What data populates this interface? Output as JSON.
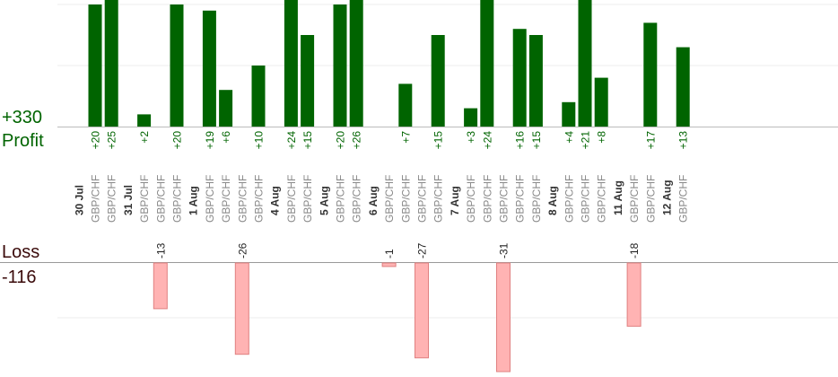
{
  "summary": {
    "profit_total": "+330",
    "profit_label": "Profit",
    "loss_label": "Loss",
    "loss_total": "-116"
  },
  "colors": {
    "profit_bar": "#006400",
    "loss_bar": "#ffb3b3",
    "loss_bar_border": "#e08080",
    "grid": "#eeeeee",
    "axis": "#999999"
  },
  "chart_data": {
    "type": "bar",
    "profit_scale_max": 20,
    "loss_scale_max": 23,
    "dates": [
      "30 Jul",
      "31 Jul",
      "1 Aug",
      "4 Aug",
      "5 Aug",
      "6 Aug",
      "7 Aug",
      "8 Aug",
      "11 Aug",
      "12 Aug"
    ],
    "trades": [
      {
        "slot": 0,
        "date": "30 Jul",
        "pair": "GBP/CHF",
        "value": 20,
        "label": "+20"
      },
      {
        "slot": 1,
        "date": "30 Jul",
        "pair": "GBP/CHF",
        "value": 25,
        "label": "+25"
      },
      {
        "slot": 3,
        "date": "31 Jul",
        "pair": "GBP/CHF",
        "value": 2,
        "label": "+2"
      },
      {
        "slot": 4,
        "date": "31 Jul",
        "pair": "GBP/CHF",
        "value": -13,
        "label": "-13"
      },
      {
        "slot": 5,
        "date": "31 Jul",
        "pair": "GBP/CHF",
        "value": 20,
        "label": "+20"
      },
      {
        "slot": 7,
        "date": "1 Aug",
        "pair": "GBP/CHF",
        "value": 19,
        "label": "+19"
      },
      {
        "slot": 8,
        "date": "1 Aug",
        "pair": "GBP/CHF",
        "value": 6,
        "label": "+6"
      },
      {
        "slot": 9,
        "date": "1 Aug",
        "pair": "GBP/CHF",
        "value": -26,
        "label": "-26"
      },
      {
        "slot": 10,
        "date": "1 Aug",
        "pair": "GBP/CHF",
        "value": 10,
        "label": "+10"
      },
      {
        "slot": 12,
        "date": "4 Aug",
        "pair": "GBP/CHF",
        "value": 24,
        "label": "+24"
      },
      {
        "slot": 13,
        "date": "4 Aug",
        "pair": "GBP/CHF",
        "value": 15,
        "label": "+15"
      },
      {
        "slot": 15,
        "date": "5 Aug",
        "pair": "GBP/CHF",
        "value": 20,
        "label": "+20"
      },
      {
        "slot": 16,
        "date": "5 Aug",
        "pair": "GBP/CHF",
        "value": 26,
        "label": "+26"
      },
      {
        "slot": 18,
        "date": "6 Aug",
        "pair": "GBP/CHF",
        "value": -1,
        "label": "-1"
      },
      {
        "slot": 19,
        "date": "6 Aug",
        "pair": "GBP/CHF",
        "value": 7,
        "label": "+7"
      },
      {
        "slot": 20,
        "date": "6 Aug",
        "pair": "GBP/CHF",
        "value": -27,
        "label": "-27"
      },
      {
        "slot": 21,
        "date": "6 Aug",
        "pair": "GBP/CHF",
        "value": 15,
        "label": "+15"
      },
      {
        "slot": 23,
        "date": "7 Aug",
        "pair": "GBP/CHF",
        "value": 3,
        "label": "+3"
      },
      {
        "slot": 24,
        "date": "7 Aug",
        "pair": "GBP/CHF",
        "value": 24,
        "label": "+24"
      },
      {
        "slot": 25,
        "date": "7 Aug",
        "pair": "GBP/CHF",
        "value": -31,
        "label": "-31"
      },
      {
        "slot": 26,
        "date": "7 Aug",
        "pair": "GBP/CHF",
        "value": 16,
        "label": "+16"
      },
      {
        "slot": 27,
        "date": "7 Aug",
        "pair": "GBP/CHF",
        "value": 15,
        "label": "+15"
      },
      {
        "slot": 29,
        "date": "8 Aug",
        "pair": "GBP/CHF",
        "value": 4,
        "label": "+4"
      },
      {
        "slot": 30,
        "date": "8 Aug",
        "pair": "GBP/CHF",
        "value": 21,
        "label": "+21"
      },
      {
        "slot": 31,
        "date": "8 Aug",
        "pair": "GBP/CHF",
        "value": 8,
        "label": "+8"
      },
      {
        "slot": 33,
        "date": "11 Aug",
        "pair": "GBP/CHF",
        "value": -18,
        "label": "-18"
      },
      {
        "slot": 34,
        "date": "11 Aug",
        "pair": "GBP/CHF",
        "value": 17,
        "label": "+17"
      },
      {
        "slot": 36,
        "date": "12 Aug",
        "pair": "GBP/CHF",
        "value": 13,
        "label": "+13"
      }
    ]
  }
}
